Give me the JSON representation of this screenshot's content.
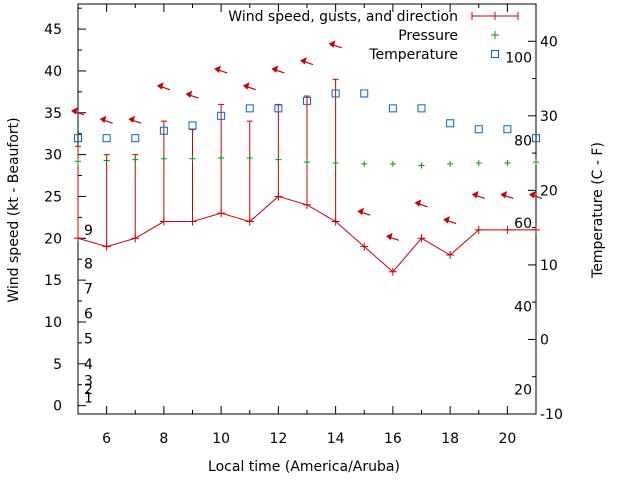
{
  "chart_data": {
    "type": "line",
    "xlabel": "Local time (America/Aruba)",
    "ylabel_left": "Wind speed (kt - Beaufort)",
    "ylabel_right": "Temperature (C - F)",
    "xlim": [
      5,
      21
    ],
    "ylim_left": [
      -1,
      48
    ],
    "ylim_right": [
      -10,
      45
    ],
    "x_ticks": [
      6,
      8,
      10,
      12,
      14,
      16,
      18,
      20
    ],
    "y_ticks_left": [
      0,
      5,
      10,
      15,
      20,
      25,
      30,
      35,
      40,
      45
    ],
    "y_ticks_right": [
      -10,
      0,
      10,
      20,
      30,
      40
    ],
    "beaufort_labels": [
      {
        "label": "1",
        "value": 1
      },
      {
        "label": "2",
        "value": 2
      },
      {
        "label": "3",
        "value": 3
      },
      {
        "label": "4",
        "value": 5
      },
      {
        "label": "5",
        "value": 8
      },
      {
        "label": "6",
        "value": 11
      },
      {
        "label": "7",
        "value": 14
      },
      {
        "label": "8",
        "value": 17
      },
      {
        "label": "9",
        "value": 21
      }
    ],
    "fahrenheit_labels": [
      {
        "label": "20",
        "value": -6.7
      },
      {
        "label": "40",
        "value": 4.4
      },
      {
        "label": "60",
        "value": 15.6
      },
      {
        "label": "80",
        "value": 26.7
      },
      {
        "label": "100",
        "value": 37.8
      }
    ],
    "legend": [
      {
        "label": "Wind speed, gusts, and direction",
        "color": "#cc0000",
        "marker": "line-plus"
      },
      {
        "label": "Pressure",
        "color": "#00a000",
        "marker": "plus"
      },
      {
        "label": "Temperature",
        "color": "#0066cc",
        "marker": "square"
      }
    ],
    "colors": {
      "wind": "#cc0000",
      "pressure": "#00a000",
      "temperature": "#0066cc"
    },
    "wind": [
      {
        "x": 5,
        "speed": 20,
        "gust": 31,
        "arrow_y": 35
      },
      {
        "x": 6,
        "speed": 19,
        "gust": 30,
        "arrow_y": 34
      },
      {
        "x": 7,
        "speed": 20,
        "gust": 30,
        "arrow_y": 34
      },
      {
        "x": 8,
        "speed": 22,
        "gust": 34,
        "arrow_y": 38
      },
      {
        "x": 9,
        "speed": 22,
        "gust": 33,
        "arrow_y": 37
      },
      {
        "x": 10,
        "speed": 23,
        "gust": 36,
        "arrow_y": 40
      },
      {
        "x": 11,
        "speed": 22,
        "gust": 34,
        "arrow_y": 38
      },
      {
        "x": 12,
        "speed": 25,
        "gust": 36,
        "arrow_y": 40
      },
      {
        "x": 13,
        "speed": 24,
        "gust": 37,
        "arrow_y": 41
      },
      {
        "x": 14,
        "speed": 22,
        "gust": 39,
        "arrow_y": 43
      },
      {
        "x": 15,
        "speed": 19,
        "gust": 19,
        "arrow_y": 23
      },
      {
        "x": 16,
        "speed": 16,
        "gust": 16,
        "arrow_y": 20
      },
      {
        "x": 17,
        "speed": 20,
        "gust": 20,
        "arrow_y": 24
      },
      {
        "x": 18,
        "speed": 18,
        "gust": 18,
        "arrow_y": 22
      },
      {
        "x": 19,
        "speed": 21,
        "gust": 21,
        "arrow_y": 25
      },
      {
        "x": 20,
        "speed": 21,
        "gust": 21,
        "arrow_y": 25
      },
      {
        "x": 21,
        "speed": 21,
        "gust": 21,
        "arrow_y": 25
      }
    ],
    "pressure": [
      {
        "x": 5,
        "y": 29.2
      },
      {
        "x": 6,
        "y": 29.3
      },
      {
        "x": 7,
        "y": 29.4
      },
      {
        "x": 8,
        "y": 29.5
      },
      {
        "x": 9,
        "y": 29.5
      },
      {
        "x": 10,
        "y": 29.6
      },
      {
        "x": 11,
        "y": 29.6
      },
      {
        "x": 12,
        "y": 29.4
      },
      {
        "x": 13,
        "y": 29.1
      },
      {
        "x": 14,
        "y": 29.0
      },
      {
        "x": 15,
        "y": 28.9
      },
      {
        "x": 16,
        "y": 28.9
      },
      {
        "x": 17,
        "y": 28.7
      },
      {
        "x": 18,
        "y": 28.9
      },
      {
        "x": 19,
        "y": 29.0
      },
      {
        "x": 20,
        "y": 29.0
      },
      {
        "x": 21,
        "y": 29.1
      }
    ],
    "temperature": [
      {
        "x": 5,
        "y": 27
      },
      {
        "x": 6,
        "y": 27
      },
      {
        "x": 7,
        "y": 27
      },
      {
        "x": 8,
        "y": 28
      },
      {
        "x": 9,
        "y": 28.7
      },
      {
        "x": 10,
        "y": 30
      },
      {
        "x": 11,
        "y": 31
      },
      {
        "x": 12,
        "y": 31
      },
      {
        "x": 13,
        "y": 32
      },
      {
        "x": 14,
        "y": 33
      },
      {
        "x": 15,
        "y": 33
      },
      {
        "x": 16,
        "y": 31
      },
      {
        "x": 17,
        "y": 31
      },
      {
        "x": 18,
        "y": 29
      },
      {
        "x": 19,
        "y": 28.2
      },
      {
        "x": 20,
        "y": 28.2
      },
      {
        "x": 21,
        "y": 27
      }
    ]
  }
}
